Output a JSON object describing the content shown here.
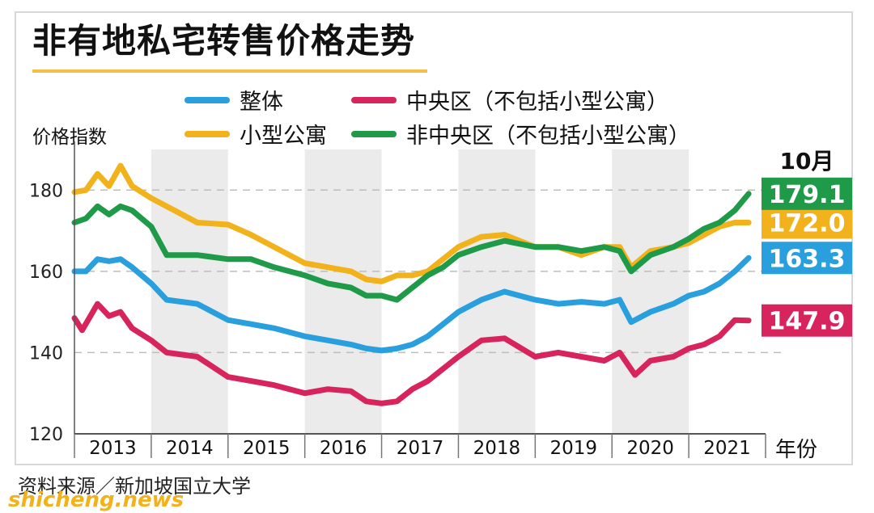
{
  "title": "非有地私宅转售价格走势",
  "legend": [
    {
      "label": "整体",
      "color": "#2a9fde"
    },
    {
      "label": "中央区（不包括小型公寓）",
      "color": "#d8245c"
    },
    {
      "label": "小型公寓",
      "color": "#f2b21c"
    },
    {
      "label": "非中央区（不包括小型公寓）",
      "color": "#1e9a48"
    }
  ],
  "ylabel": "价格指数",
  "xunit": "年份",
  "end_month_label": "10月",
  "source": "资料来源／新加坡国立大学",
  "watermark": "shicheng.news",
  "chart_data": {
    "type": "line",
    "x_unit": "year",
    "categories": [
      "2013",
      "2014",
      "2015",
      "2016",
      "2017",
      "2018",
      "2019",
      "2020",
      "2021"
    ],
    "ylim": [
      120,
      190
    ],
    "yticks": [
      120,
      140,
      160,
      180
    ],
    "grid": "dashed horizontal lines at 140, 160, 180; alternating shaded year bands",
    "end_labels": [
      "179.1",
      "172.0",
      "163.3",
      "147.9"
    ],
    "series": [
      {
        "name": "小型公寓",
        "color": "#f2b21c",
        "end_label": "172.0",
        "x": [
          2013.0,
          2013.15,
          2013.3,
          2013.45,
          2013.6,
          2013.75,
          2014.0,
          2014.3,
          2014.6,
          2015.0,
          2015.3,
          2015.6,
          2016.0,
          2016.3,
          2016.6,
          2016.8,
          2017.0,
          2017.2,
          2017.4,
          2017.6,
          2017.8,
          2018.0,
          2018.3,
          2018.6,
          2019.0,
          2019.3,
          2019.6,
          2019.9,
          2020.1,
          2020.25,
          2020.5,
          2020.8,
          2021.0,
          2021.2,
          2021.4,
          2021.6,
          2021.78
        ],
        "y": [
          179.5,
          180,
          184,
          181,
          186,
          181,
          178,
          175,
          172,
          171.5,
          169,
          166,
          162,
          161,
          160,
          158,
          157.5,
          159,
          159,
          160,
          163,
          166,
          168.5,
          169,
          166,
          166,
          164,
          166,
          166,
          161,
          165,
          166,
          167,
          169,
          171,
          172,
          172.0
        ]
      },
      {
        "name": "非中央区（不包括小型公寓）",
        "color": "#1e9a48",
        "end_label": "179.1",
        "x": [
          2013.0,
          2013.15,
          2013.3,
          2013.45,
          2013.6,
          2013.75,
          2014.0,
          2014.2,
          2014.6,
          2015.0,
          2015.3,
          2015.6,
          2016.0,
          2016.3,
          2016.6,
          2016.8,
          2017.0,
          2017.2,
          2017.4,
          2017.6,
          2017.8,
          2018.0,
          2018.3,
          2018.6,
          2019.0,
          2019.3,
          2019.6,
          2019.9,
          2020.1,
          2020.25,
          2020.5,
          2020.8,
          2021.0,
          2021.2,
          2021.4,
          2021.6,
          2021.78
        ],
        "y": [
          172,
          173,
          176,
          174,
          176,
          175,
          171,
          164,
          164,
          163,
          163,
          161,
          159,
          157,
          156,
          154,
          154,
          153,
          156,
          159,
          161,
          164,
          166,
          167.5,
          166,
          166,
          165,
          166,
          165,
          160,
          164,
          166,
          168,
          170.5,
          172,
          175,
          179.1
        ]
      },
      {
        "name": "整体",
        "color": "#2a9fde",
        "end_label": "163.3",
        "x": [
          2013.0,
          2013.15,
          2013.3,
          2013.45,
          2013.6,
          2013.75,
          2014.0,
          2014.2,
          2014.6,
          2015.0,
          2015.3,
          2015.6,
          2016.0,
          2016.3,
          2016.6,
          2016.8,
          2017.0,
          2017.2,
          2017.4,
          2017.6,
          2017.8,
          2018.0,
          2018.3,
          2018.6,
          2019.0,
          2019.3,
          2019.6,
          2019.9,
          2020.1,
          2020.25,
          2020.5,
          2020.8,
          2021.0,
          2021.2,
          2021.4,
          2021.6,
          2021.78
        ],
        "y": [
          160,
          160,
          163,
          162.5,
          163,
          161,
          157,
          153,
          152,
          148,
          147,
          146,
          144,
          143,
          142,
          141,
          140.5,
          141,
          142,
          144,
          147,
          150,
          153,
          155,
          153,
          152,
          152.5,
          152,
          153,
          147.5,
          150,
          152,
          154,
          155,
          157,
          160,
          163.3
        ]
      },
      {
        "name": "中央区（不包括小型公寓）",
        "color": "#d8245c",
        "end_label": "147.9",
        "x": [
          2013.0,
          2013.1,
          2013.3,
          2013.45,
          2013.6,
          2013.75,
          2014.0,
          2014.2,
          2014.6,
          2015.0,
          2015.3,
          2015.6,
          2016.0,
          2016.3,
          2016.6,
          2016.8,
          2017.0,
          2017.2,
          2017.4,
          2017.6,
          2017.8,
          2018.0,
          2018.3,
          2018.6,
          2019.0,
          2019.3,
          2019.6,
          2019.9,
          2020.1,
          2020.3,
          2020.5,
          2020.8,
          2021.0,
          2021.2,
          2021.4,
          2021.6,
          2021.78
        ],
        "y": [
          148.5,
          145.5,
          152,
          149,
          150,
          146,
          143,
          140,
          139,
          134,
          133,
          132,
          130,
          131,
          130.5,
          128,
          127.5,
          128,
          131,
          133,
          136,
          139,
          143,
          143.5,
          139,
          140,
          139,
          138,
          140,
          134.5,
          138,
          139,
          141,
          142,
          144,
          148,
          147.9
        ]
      }
    ]
  }
}
